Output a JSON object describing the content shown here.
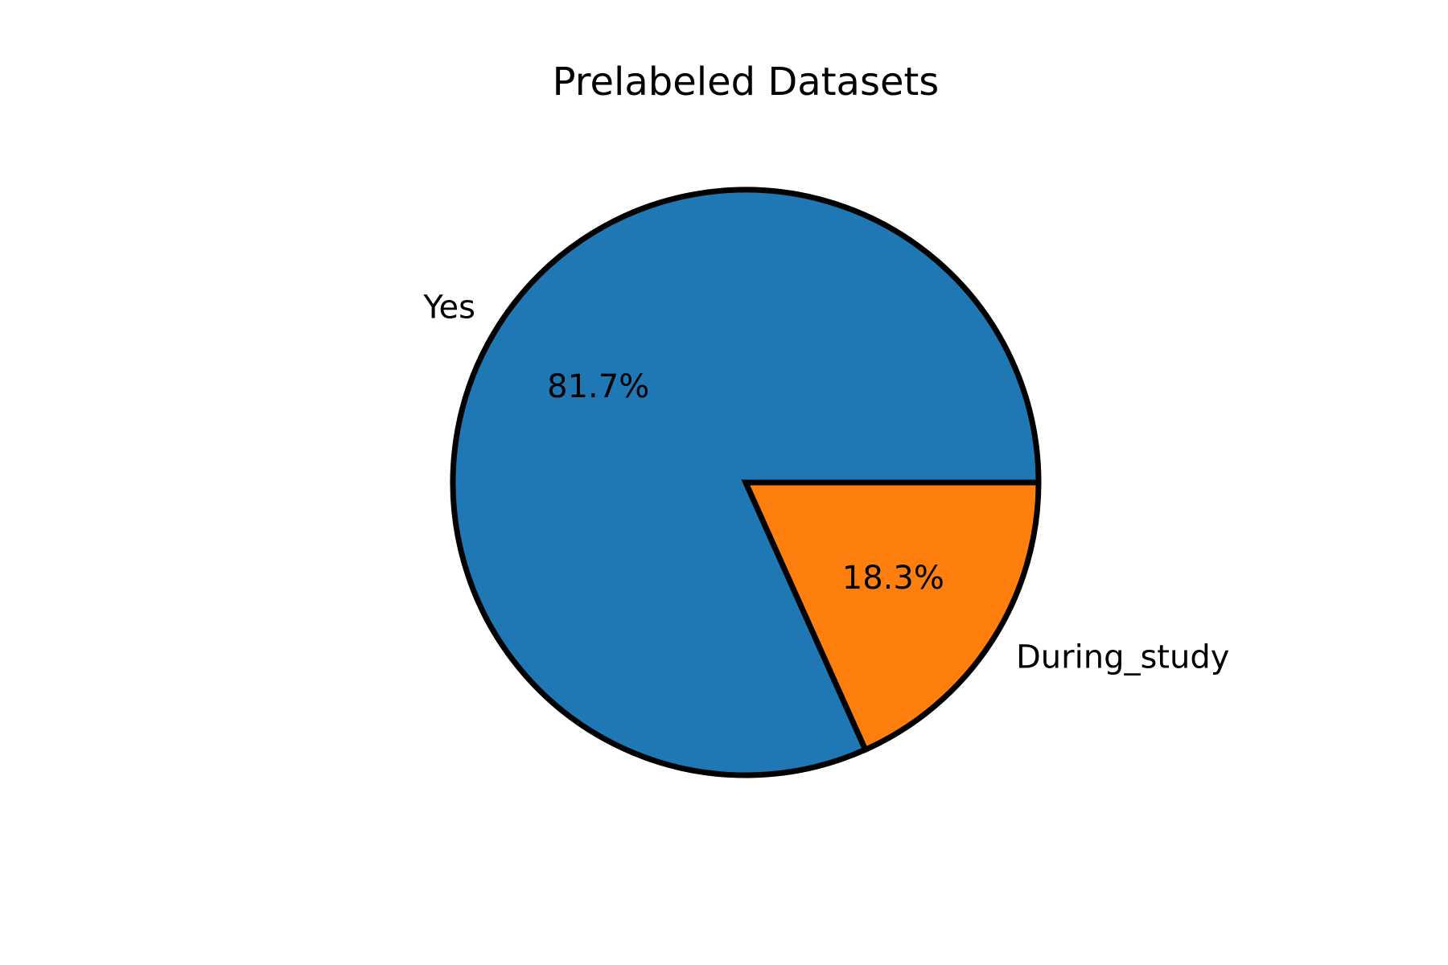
{
  "chart_data": {
    "type": "pie",
    "title": "Prelabeled Datasets",
    "slices": [
      {
        "label": "Yes",
        "value": 81.7,
        "pct_label": "81.7%",
        "color": "#1f77b4"
      },
      {
        "label": "During_study",
        "value": 18.3,
        "pct_label": "18.3%",
        "color": "#ff7f0e"
      }
    ],
    "start_angle_deg": 0,
    "direction": "counterclockwise",
    "edgecolor": "#000000"
  }
}
